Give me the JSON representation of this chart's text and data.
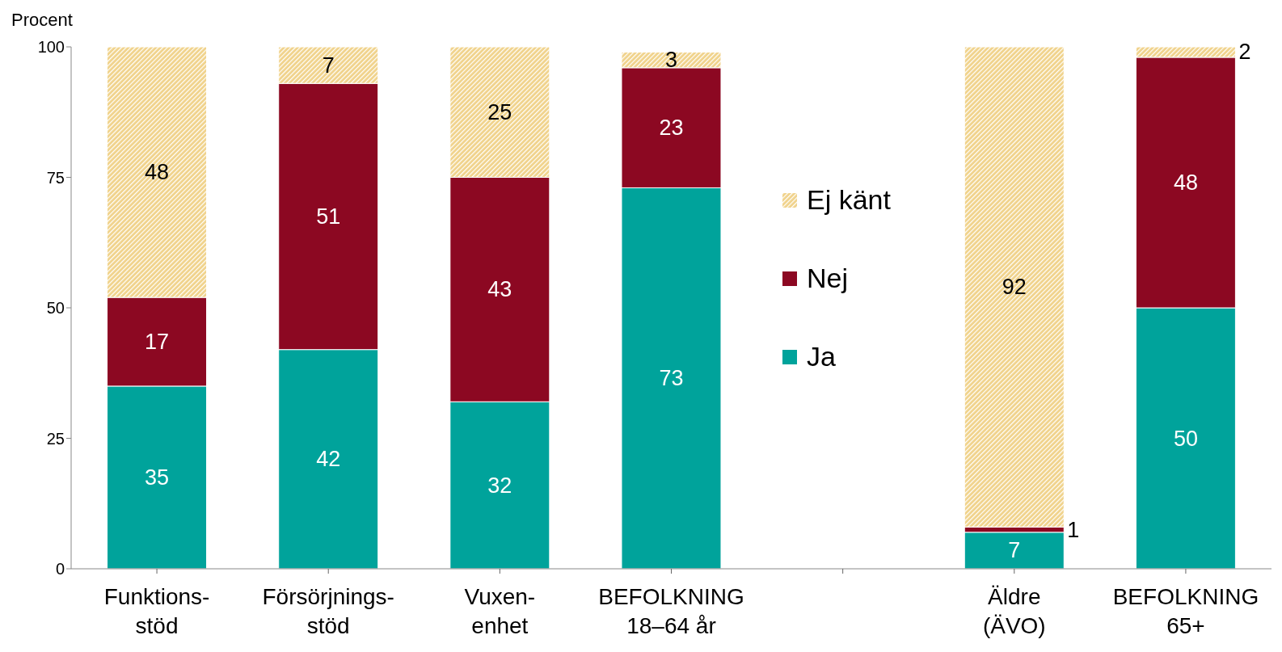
{
  "chart_data": {
    "type": "bar",
    "stacked": true,
    "ylabel": "Procent",
    "categories": [
      "Funktions-\nstöd",
      "Försörjnings-\nstöd",
      "Vuxen-\nenhet",
      "BEFOLKNING\n18–64 år",
      null,
      "Äldre\n(ÄVO)",
      "BEFOLKNING\n65+"
    ],
    "series": [
      {
        "name": "Ja",
        "color": "#00a39b",
        "values": [
          35,
          42,
          32,
          73,
          null,
          7,
          50
        ]
      },
      {
        "name": "Nej",
        "color": "#8c0822",
        "values": [
          17,
          51,
          43,
          23,
          null,
          1,
          48
        ]
      },
      {
        "name": "Ej känt",
        "color": "#f0d28a",
        "values": [
          48,
          7,
          25,
          3,
          null,
          92,
          2
        ]
      }
    ],
    "ylim": [
      0,
      100
    ],
    "yticks": [
      0,
      25,
      50,
      75,
      100
    ],
    "legend": "center",
    "data_labels": true
  }
}
